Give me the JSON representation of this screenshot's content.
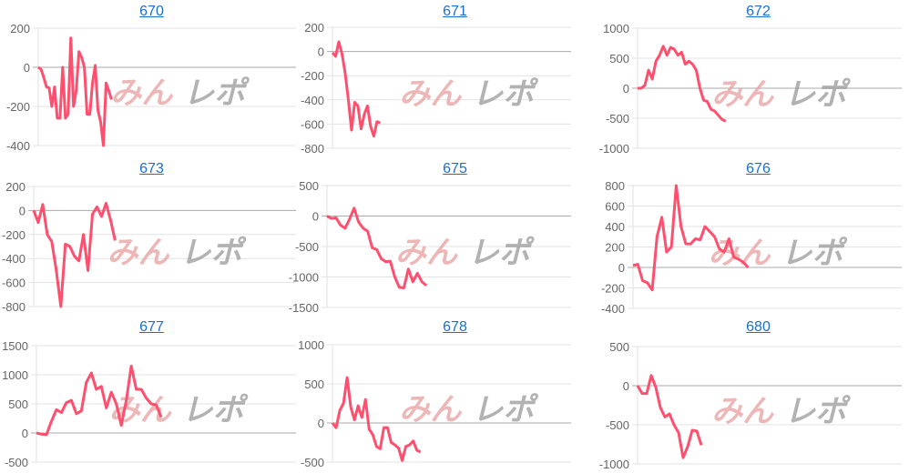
{
  "watermark": {
    "red": "みん",
    "gray": "レポ"
  },
  "line_color": "#ff4f6e",
  "chart_data": [
    {
      "type": "line",
      "title": "670",
      "ylim": [
        -400,
        200
      ],
      "yticks": [
        200,
        0,
        -200,
        -400
      ],
      "xlim": [
        0,
        95
      ],
      "grid": true,
      "values": [
        0,
        -10,
        -50,
        -100,
        -105,
        -200,
        -100,
        -260,
        -260,
        0,
        -260,
        -240,
        150,
        -200,
        -120,
        80,
        50,
        0,
        -240,
        -240,
        -80,
        10,
        -220,
        -280,
        -400,
        -80,
        -120,
        -165
      ]
    },
    {
      "type": "line",
      "title": "671",
      "ylim": [
        -800,
        200
      ],
      "yticks": [
        200,
        0,
        -200,
        -400,
        -600,
        -800
      ],
      "xlim": [
        0,
        75
      ],
      "grid": true,
      "values": [
        -10,
        -40,
        80,
        -20,
        -180,
        -400,
        -650,
        -420,
        -450,
        -640,
        -520,
        -450,
        -620,
        -700,
        -580,
        -590
      ]
    },
    {
      "type": "line",
      "title": "672",
      "ylim": [
        -1000,
        1000
      ],
      "yticks": [
        1000,
        500,
        0,
        -500,
        -1000
      ],
      "xlim": [
        0,
        72
      ],
      "grid": true,
      "values": [
        0,
        0,
        50,
        300,
        150,
        450,
        550,
        700,
        550,
        680,
        650,
        550,
        600,
        400,
        450,
        400,
        300,
        0,
        -200,
        -220,
        -350,
        -380,
        -450,
        -520,
        -550
      ]
    },
    {
      "type": "line",
      "title": "673",
      "ylim": [
        -800,
        200
      ],
      "yticks": [
        200,
        0,
        -200,
        -400,
        -600,
        -800
      ],
      "xlim": [
        0,
        58
      ],
      "grid": true,
      "values": [
        0,
        -100,
        50,
        -200,
        -260,
        -500,
        -800,
        -280,
        -300,
        -380,
        -420,
        -200,
        -500,
        -30,
        30,
        -50,
        60,
        -80,
        -250
      ]
    },
    {
      "type": "line",
      "title": "675",
      "ylim": [
        -1500,
        500
      ],
      "yticks": [
        500,
        0,
        -500,
        -1000,
        -1500
      ],
      "xlim": [
        0,
        54
      ],
      "grid": true,
      "values": [
        0,
        -40,
        -30,
        -150,
        -200,
        -50,
        130,
        -100,
        -200,
        -250,
        -520,
        -550,
        -700,
        -750,
        -740,
        -1000,
        -1170,
        -1180,
        -870,
        -1080,
        -940,
        -1080,
        -1140
      ]
    },
    {
      "type": "line",
      "title": "676",
      "ylim": [
        -400,
        800
      ],
      "yticks": [
        800,
        600,
        400,
        200,
        0,
        -200,
        -400
      ],
      "xlim": [
        0,
        56
      ],
      "grid": true,
      "values": [
        20,
        30,
        -130,
        -150,
        -220,
        300,
        490,
        150,
        200,
        800,
        400,
        230,
        230,
        280,
        270,
        400,
        350,
        300,
        180,
        150,
        280,
        100,
        80,
        50,
        0
      ]
    },
    {
      "type": "line",
      "title": "677",
      "ylim": [
        -500,
        1500
      ],
      "yticks": [
        1500,
        1000,
        500,
        0,
        -500
      ],
      "xlim": [
        0,
        52
      ],
      "grid": true,
      "values": [
        0,
        -20,
        -30,
        200,
        400,
        350,
        520,
        560,
        330,
        380,
        870,
        1030,
        750,
        800,
        430,
        700,
        500,
        130,
        560,
        1150,
        750,
        750,
        600,
        500,
        480,
        270
      ]
    },
    {
      "type": "line",
      "title": "678",
      "ylim": [
        -500,
        1000
      ],
      "yticks": [
        1000,
        500,
        0,
        -500
      ],
      "xlim": [
        0,
        65
      ],
      "grid": true,
      "values": [
        0,
        -60,
        160,
        250,
        580,
        200,
        40,
        220,
        70,
        300,
        -80,
        -150,
        -300,
        -330,
        -60,
        -60,
        -250,
        -280,
        -320,
        -480,
        -300,
        -280,
        -230,
        -350,
        -370
      ]
    },
    {
      "type": "line",
      "title": "680",
      "ylim": [
        -1000,
        500
      ],
      "yticks": [
        500,
        0,
        -500,
        -1000
      ],
      "xlim": [
        0,
        58
      ],
      "grid": true,
      "values": [
        0,
        -100,
        -100,
        130,
        -20,
        -280,
        -400,
        -360,
        -500,
        -600,
        -920,
        -780,
        -570,
        -580,
        -760
      ]
    }
  ]
}
